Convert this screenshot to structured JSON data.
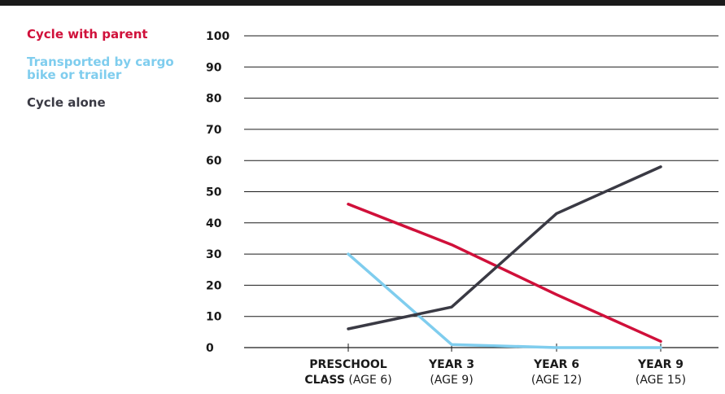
{
  "chart_data": {
    "type": "line",
    "categories": [
      {
        "line1_bold": "PRESCHOOL",
        "line2_bold": "CLASS",
        "line2_rest": " (AGE 6)"
      },
      {
        "line1_bold": "YEAR 3",
        "line2_bold": "",
        "line2_rest": "(AGE 9)"
      },
      {
        "line1_bold": "YEAR 6",
        "line2_bold": "",
        "line2_rest": "(AGE 12)"
      },
      {
        "line1_bold": "YEAR 9",
        "line2_bold": "",
        "line2_rest": "(AGE 15)"
      }
    ],
    "series": [
      {
        "name": "Cycle with parent",
        "color": "#d0103a",
        "values": [
          46,
          33,
          17,
          2
        ]
      },
      {
        "name": "Transported by cargo bike or trailer",
        "color": "#7fcdee",
        "values": [
          30,
          1,
          0,
          0
        ]
      },
      {
        "name": "Cycle alone",
        "color": "#3a3a44",
        "values": [
          6,
          13,
          43,
          58
        ]
      }
    ],
    "yticks": [
      0,
      10,
      20,
      30,
      40,
      50,
      60,
      70,
      80,
      90,
      100
    ],
    "ylim": [
      0,
      100
    ],
    "grid": true,
    "legend_position": "top-left"
  }
}
